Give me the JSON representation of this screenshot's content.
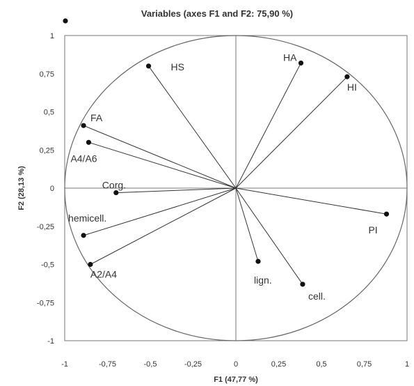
{
  "chart_data": {
    "type": "scatter",
    "title": "Variables (axes F1 and F2: 75,90 %)",
    "xlabel": "F1 (47,77 %)",
    "ylabel": "F2 (28,13 %)",
    "xlim": [
      -1,
      1
    ],
    "ylim": [
      -1,
      1
    ],
    "xticks": [
      "-1",
      "-0,75",
      "-0,5",
      "-0,25",
      "0",
      "0,25",
      "0,5",
      "0,75",
      "1"
    ],
    "yticks": [
      "1",
      "0,75",
      "0,5",
      "0,25",
      "0",
      "-0,25",
      "-0,5",
      "-0,75",
      "-1"
    ],
    "correlation_circle": true,
    "vectors_from_origin": true,
    "legend_marker": true,
    "points": [
      {
        "label": "HS",
        "x": -0.51,
        "y": 0.8
      },
      {
        "label": "HA",
        "x": 0.38,
        "y": 0.82
      },
      {
        "label": "HI",
        "x": 0.65,
        "y": 0.73
      },
      {
        "label": "FA",
        "x": -0.89,
        "y": 0.41
      },
      {
        "label": "A4/A6",
        "x": -0.86,
        "y": 0.3
      },
      {
        "label": "Corg.",
        "x": -0.7,
        "y": -0.03
      },
      {
        "label": "hemicell.",
        "x": -0.89,
        "y": -0.31
      },
      {
        "label": "A2/A4",
        "x": -0.85,
        "y": -0.5
      },
      {
        "label": "PI",
        "x": 0.88,
        "y": -0.17
      },
      {
        "label": "lign.",
        "x": 0.13,
        "y": -0.48
      },
      {
        "label": "cell.",
        "x": 0.39,
        "y": -0.63
      }
    ],
    "colors": {
      "point": "#111111",
      "line": "#333333",
      "frame": "#777777",
      "text": "#333333"
    }
  }
}
